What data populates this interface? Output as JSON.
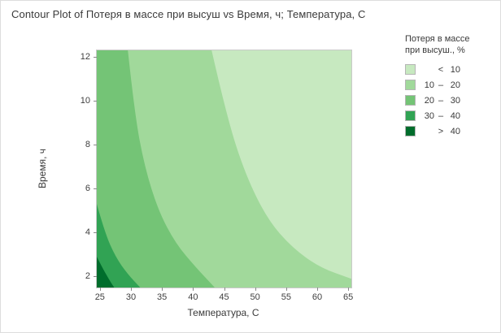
{
  "chart_data": {
    "type": "contour",
    "title": "Contour Plot of Потеря в массе при высуш vs Время, ч; Температура, C",
    "xlabel": "Температура, C",
    "ylabel": "Время, ч",
    "xlim": [
      24.5,
      65.5
    ],
    "ylim": [
      1.5,
      12.3
    ],
    "xticks": [
      25,
      30,
      35,
      40,
      45,
      50,
      55,
      60,
      65
    ],
    "yticks": [
      2,
      4,
      6,
      8,
      10,
      12
    ],
    "grid": false,
    "base_color": "#c7e9c0",
    "frame_color": "#c9c9c9",
    "legend": {
      "position": "right",
      "title_line1": "Потеря в массе",
      "title_line2": "при высуш., %",
      "entries": [
        {
          "c1": "",
          "c2": "<",
          "c3": "10",
          "color": "#c7e9c0",
          "range": "< 10"
        },
        {
          "c1": "10",
          "c2": "–",
          "c3": "20",
          "color": "#a1d99b",
          "range": "10 – 20"
        },
        {
          "c1": "20",
          "c2": "–",
          "c3": "30",
          "color": "#74c476",
          "range": "20 – 30"
        },
        {
          "c1": "30",
          "c2": "–",
          "c3": "40",
          "color": "#31a354",
          "range": "30 – 40"
        },
        {
          "c1": "",
          "c2": ">",
          "c3": "40",
          "color": "#006d2c",
          "range": "> 40"
        }
      ]
    },
    "bands": [
      {
        "name": "ge-10",
        "level": 10,
        "color": "#a1d99b",
        "boundary": [
          [
            43,
            12.3
          ],
          [
            45.5,
            9.2
          ],
          [
            48.5,
            6.6
          ],
          [
            52,
            4.6
          ],
          [
            56,
            3.3
          ],
          [
            60.5,
            2.4
          ],
          [
            65.5,
            1.9
          ]
        ],
        "close": [
          [
            65.5,
            1.5
          ],
          [
            24.5,
            1.5
          ],
          [
            24.5,
            12.3
          ]
        ]
      },
      {
        "name": "ge-20",
        "level": 20,
        "color": "#74c476",
        "boundary": [
          [
            29.5,
            12.3
          ],
          [
            30.6,
            9.4
          ],
          [
            32.2,
            7.0
          ],
          [
            34.4,
            5.0
          ],
          [
            37.2,
            3.5
          ],
          [
            40.5,
            2.4
          ],
          [
            43.5,
            1.5
          ]
        ],
        "close": [
          [
            24.5,
            1.5
          ],
          [
            24.5,
            12.3
          ]
        ]
      },
      {
        "name": "ge-30",
        "level": 30,
        "color": "#31a354",
        "boundary": [
          [
            24.5,
            5.3
          ],
          [
            25.8,
            4.0
          ],
          [
            27.5,
            2.9
          ],
          [
            29.5,
            2.1
          ],
          [
            31.5,
            1.5
          ]
        ],
        "close": [
          [
            24.5,
            1.5
          ]
        ]
      },
      {
        "name": "ge-40",
        "level": 40,
        "color": "#006d2c",
        "boundary": [
          [
            24.5,
            2.9
          ],
          [
            25.4,
            2.4
          ],
          [
            26.4,
            1.9
          ],
          [
            27.3,
            1.5
          ]
        ],
        "close": [
          [
            24.5,
            1.5
          ]
        ]
      }
    ]
  }
}
